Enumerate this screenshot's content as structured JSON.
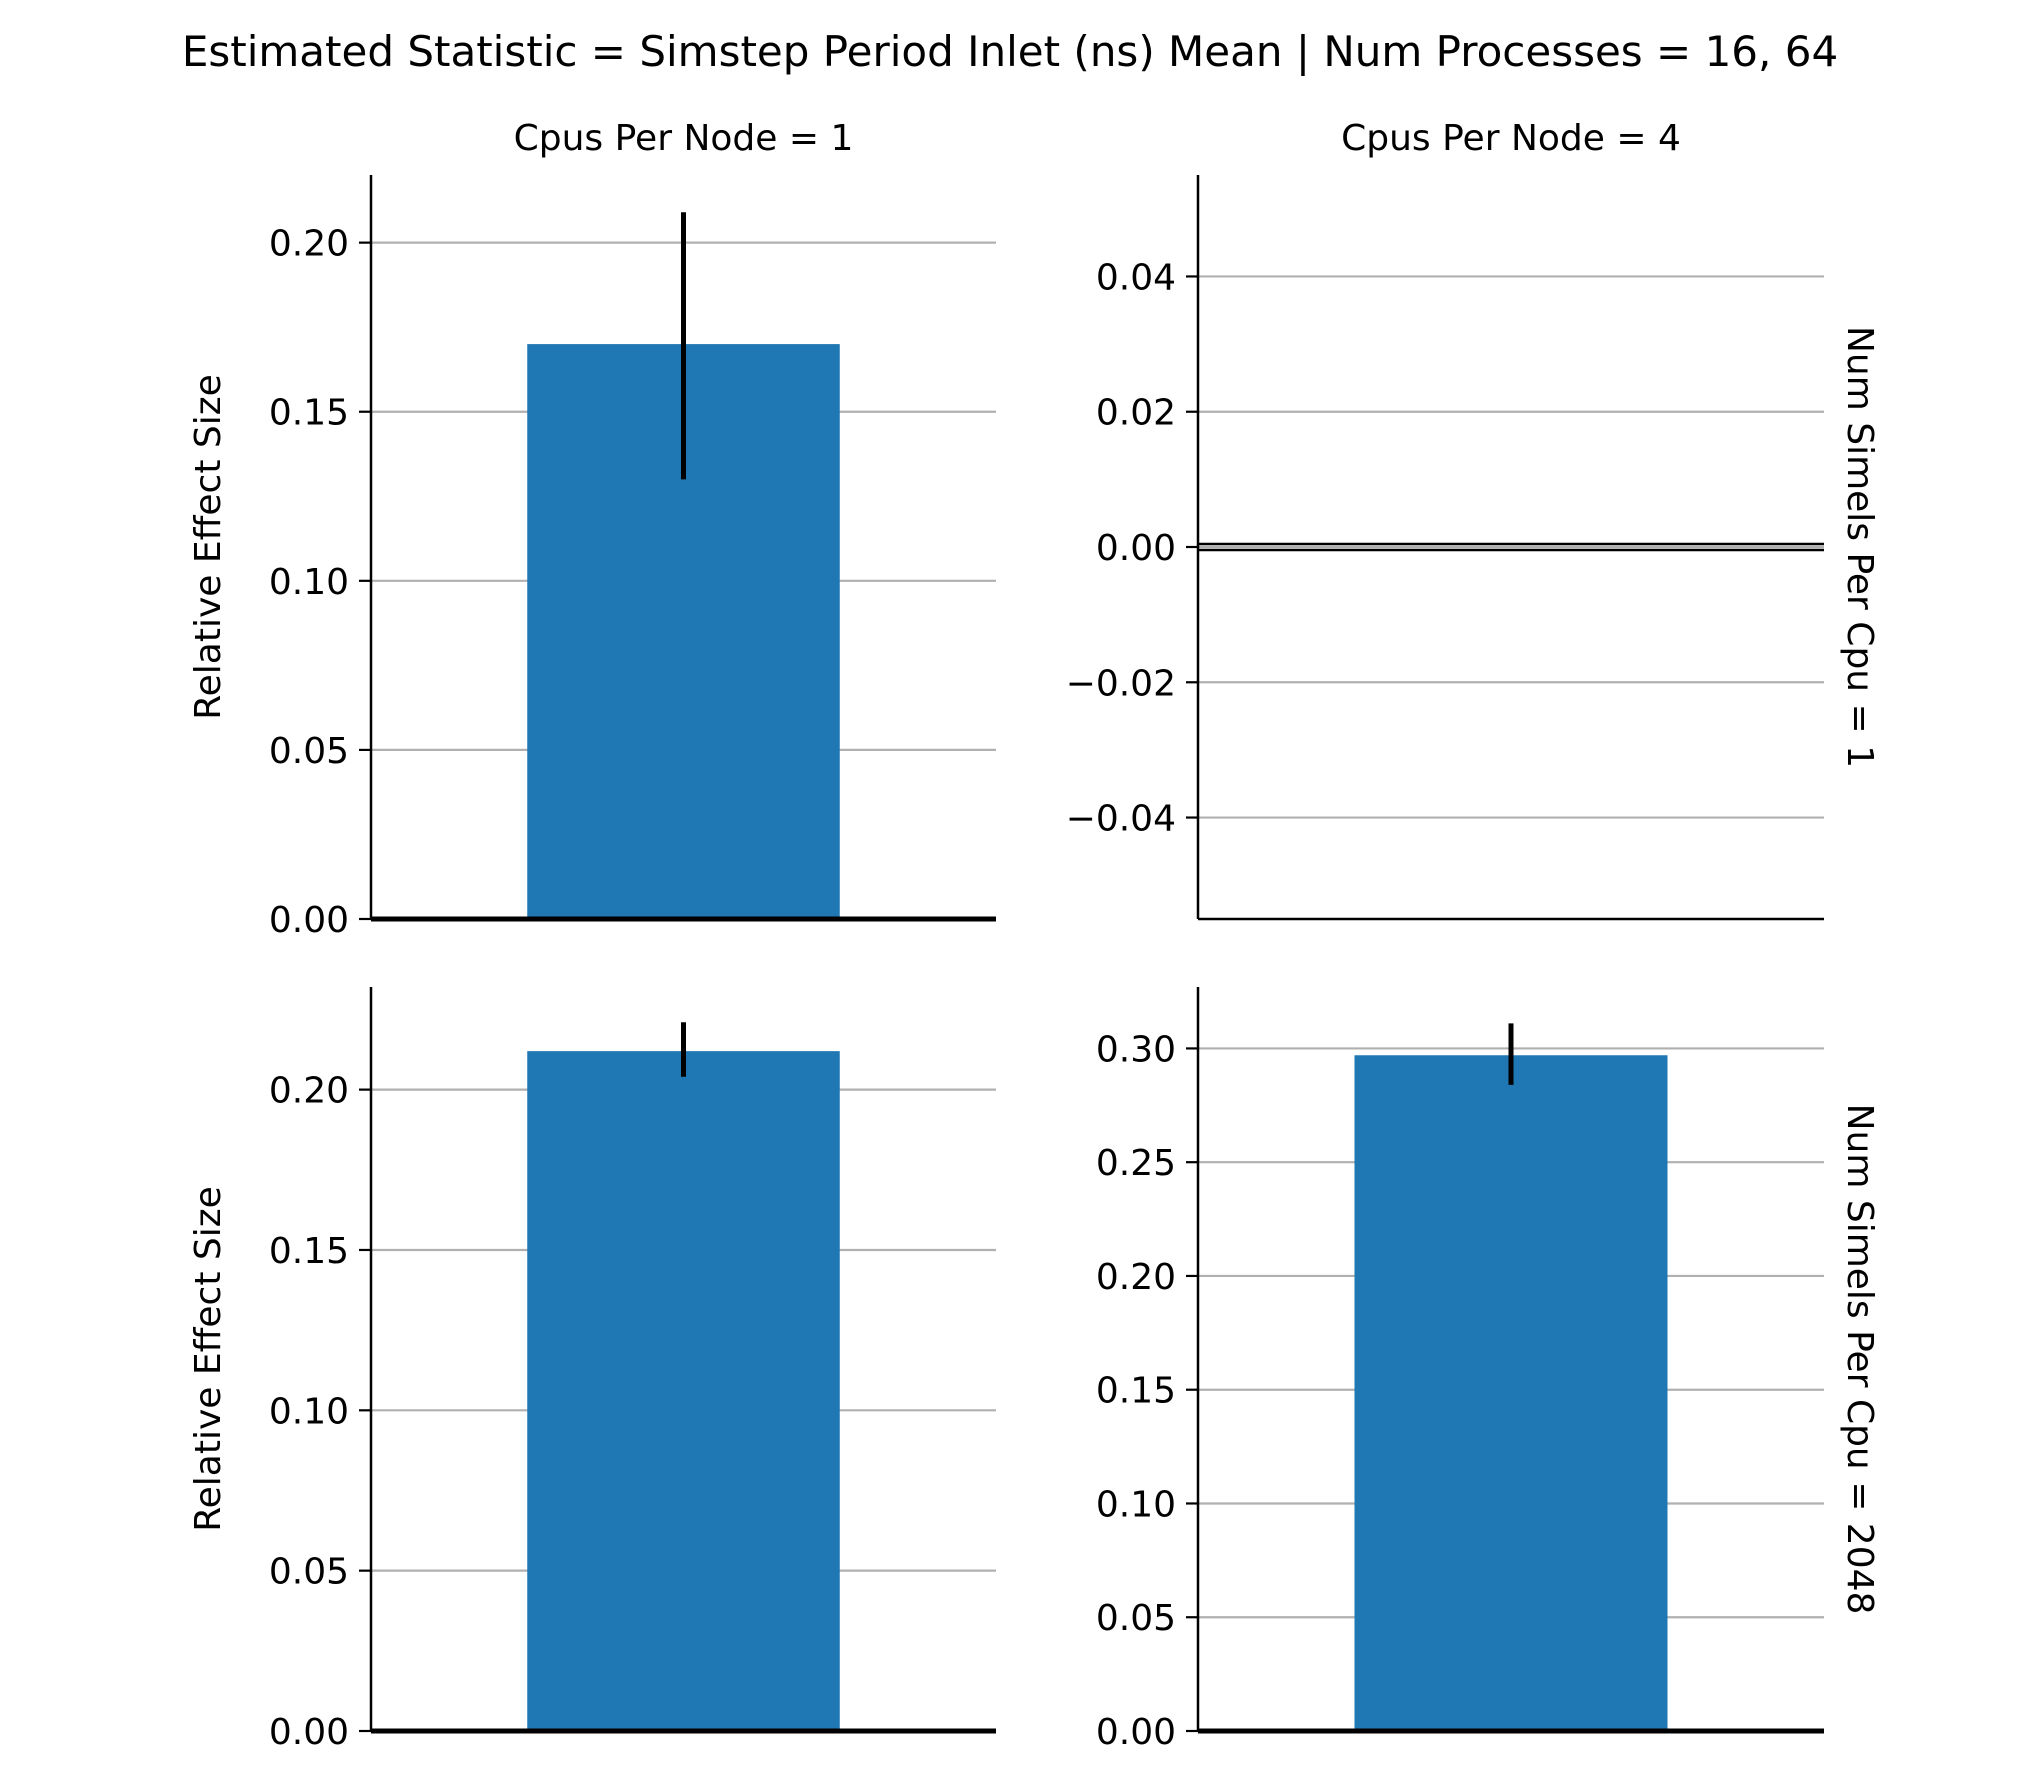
{
  "suptitle": "Estimated Statistic = Simstep Period Inlet (ns) Mean | Num Processes = 16, 64",
  "colors": {
    "bar": "#1f77b4",
    "grid": "#b0b0b0",
    "axis": "#000000",
    "errorbar": "#000000"
  },
  "chart_data": [
    {
      "type": "bar",
      "title": "Cpus Per Node = 1",
      "row_label": "",
      "ylabel": "Relative Effect Size",
      "categories": [
        ""
      ],
      "values": [
        0.17
      ],
      "error": [
        [
          0.13,
          0.209
        ]
      ],
      "ylim": [
        0,
        0.22
      ],
      "yticks": [
        0.0,
        0.05,
        0.1,
        0.15,
        0.2
      ],
      "ytick_labels": [
        "0.00",
        "0.05",
        "0.10",
        "0.15",
        "0.20"
      ],
      "grid": true
    },
    {
      "type": "bar",
      "title": "Cpus Per Node = 4",
      "row_label": "Num Simels Per Cpu = 1",
      "ylabel": "",
      "categories": [
        ""
      ],
      "values": [
        0.0
      ],
      "error": [],
      "ylim": [
        -0.055,
        0.055
      ],
      "yticks": [
        -0.04,
        -0.02,
        0.0,
        0.02,
        0.04
      ],
      "ytick_labels": [
        "−0.04",
        "−0.02",
        "0.00",
        "0.02",
        "0.04"
      ],
      "grid": true
    },
    {
      "type": "bar",
      "title": "",
      "row_label": "",
      "ylabel": "Relative Effect Size",
      "categories": [
        ""
      ],
      "values": [
        0.212
      ],
      "error": [
        [
          0.204,
          0.221
        ]
      ],
      "ylim": [
        0,
        0.232
      ],
      "yticks": [
        0.0,
        0.05,
        0.1,
        0.15,
        0.2
      ],
      "ytick_labels": [
        "0.00",
        "0.05",
        "0.10",
        "0.15",
        "0.20"
      ],
      "grid": true
    },
    {
      "type": "bar",
      "title": "",
      "row_label": "Num Simels Per Cpu = 2048",
      "ylabel": "",
      "categories": [
        ""
      ],
      "values": [
        0.297
      ],
      "error": [
        [
          0.284,
          0.311
        ]
      ],
      "ylim": [
        0,
        0.327
      ],
      "yticks": [
        0.0,
        0.05,
        0.1,
        0.15,
        0.2,
        0.25,
        0.3
      ],
      "ytick_labels": [
        "0.00",
        "0.05",
        "0.10",
        "0.15",
        "0.20",
        "0.25",
        "0.30"
      ],
      "grid": true
    }
  ]
}
